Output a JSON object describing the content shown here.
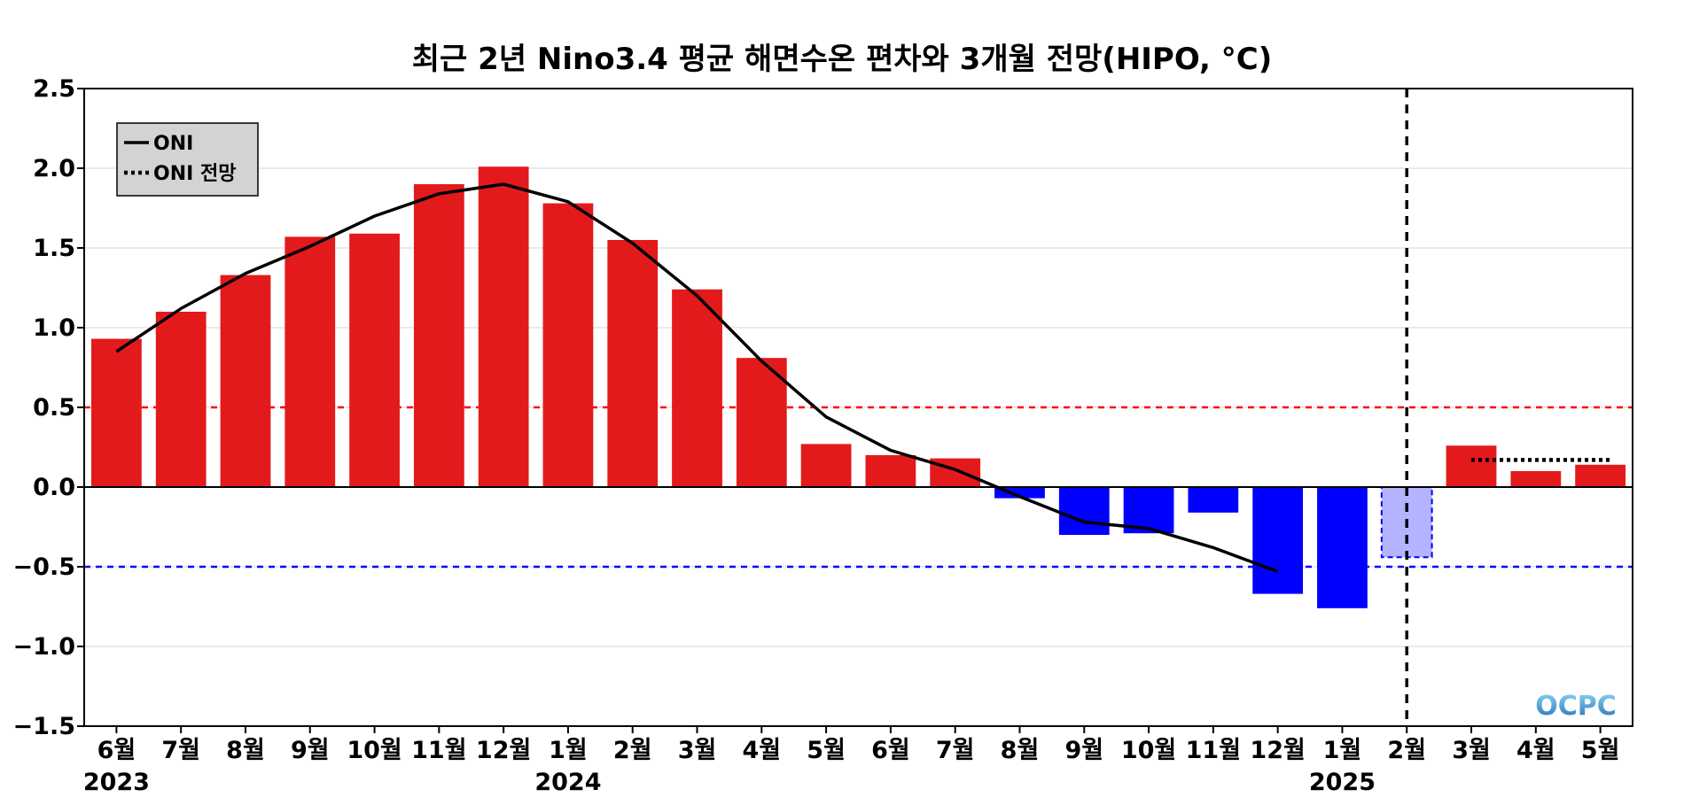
{
  "chart_data": {
    "type": "bar",
    "title": "최근 2년 Nino3.4 평균 해면수온 편차와 3개월 전망(HIPO, °C)",
    "xlabel": "",
    "ylabel": "",
    "categories": [
      "6월",
      "7월",
      "8월",
      "9월",
      "10월",
      "11월",
      "12월",
      "1월",
      "2월",
      "3월",
      "4월",
      "5월",
      "6월",
      "7월",
      "8월",
      "9월",
      "10월",
      "11월",
      "12월",
      "1월",
      "2월",
      "3월",
      "4월",
      "5월"
    ],
    "years": [
      {
        "label": "2023",
        "category_index": 0
      },
      {
        "label": "2024",
        "category_index": 7
      },
      {
        "label": "2025",
        "category_index": 19
      }
    ],
    "series": [
      {
        "kind": "bar",
        "values": [
          0.93,
          1.1,
          1.33,
          1.57,
          1.59,
          1.9,
          2.01,
          1.78,
          1.55,
          1.24,
          0.81,
          0.27,
          0.2,
          0.18,
          -0.07,
          -0.3,
          -0.29,
          -0.16,
          -0.67,
          -0.76,
          -0.44,
          0.26,
          0.1,
          0.14
        ]
      },
      {
        "name": "ONI",
        "kind": "line",
        "style": "solid",
        "values": [
          0.85,
          1.12,
          1.34,
          1.51,
          1.7,
          1.84,
          1.9,
          1.79,
          1.53,
          1.2,
          0.79,
          0.44,
          0.23,
          0.11,
          -0.06,
          -0.22,
          -0.26,
          -0.38,
          -0.53,
          null,
          null,
          null,
          null,
          null
        ]
      },
      {
        "name": "ONI 전망",
        "kind": "line",
        "style": "dotted",
        "values": [
          null,
          null,
          null,
          null,
          null,
          null,
          null,
          null,
          null,
          null,
          null,
          null,
          null,
          null,
          null,
          null,
          null,
          null,
          null,
          null,
          null,
          0.17,
          0.17,
          0.17
        ]
      }
    ],
    "highlight_bar_index": 20,
    "current_month_index": 20,
    "thresholds": [
      {
        "value": 0.5,
        "color": "#ff0000"
      },
      {
        "value": -0.5,
        "color": "#0000ff"
      }
    ],
    "ylim": [
      -1.5,
      2.5
    ],
    "yticks": [
      2.5,
      2.0,
      1.5,
      1.0,
      0.5,
      0.0,
      -0.5,
      -1.0,
      -1.5
    ],
    "ytick_labels": [
      "2.5",
      "2.0",
      "1.5",
      "1.0",
      "0.5",
      "0.0",
      "−0.5",
      "−1.0",
      "−1.5"
    ],
    "grid": "horizontal",
    "legend_position": "top-left",
    "colors": {
      "positive": "#e31a1c",
      "negative": "#0000ff",
      "highlight_fill": "#b3b3ff",
      "highlight_edge": "#0000ff",
      "line": "#000000",
      "grid": "#dddddd",
      "legend_bg": "#d3d3d3"
    },
    "logo": "OCPC"
  }
}
